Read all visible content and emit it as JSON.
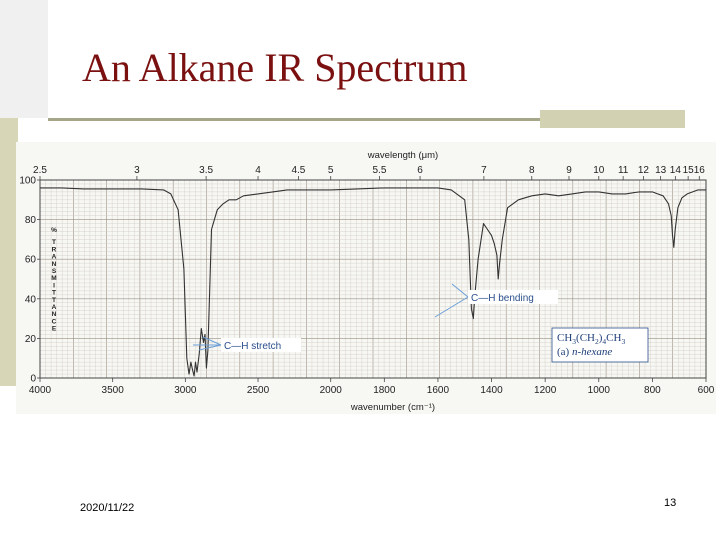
{
  "slide": {
    "title": "An Alkane IR Spectrum",
    "date": "2020/11/22",
    "page_number": "13"
  },
  "chart_data": {
    "type": "line",
    "xlabel": "wavenumber (cm⁻¹)",
    "x2label": "wavelength (μm)",
    "ylabel": "% TRANSMITTANCE",
    "xlim": [
      4000,
      600
    ],
    "ylim": [
      0,
      100
    ],
    "x_ticks": [
      {
        "label": "4000"
      },
      {
        "label": "3500"
      },
      {
        "label": "3000"
      },
      {
        "label": "2500"
      },
      {
        "label": "2000"
      },
      {
        "label": "1800"
      },
      {
        "label": "1600"
      },
      {
        "label": "1400"
      },
      {
        "label": "1200"
      },
      {
        "label": "1000"
      },
      {
        "label": "800"
      },
      {
        "label": "600"
      }
    ],
    "y_ticks": [
      {
        "label": "100",
        "value": 100
      },
      {
        "label": "80",
        "value": 80
      },
      {
        "label": "60",
        "value": 60
      },
      {
        "label": "40",
        "value": 40
      },
      {
        "label": "20",
        "value": 20
      },
      {
        "label": "0",
        "value": 0
      }
    ],
    "wavelength_ticks": [
      {
        "label": "2.5"
      },
      {
        "label": "3"
      },
      {
        "label": "3.5"
      },
      {
        "label": "4"
      },
      {
        "label": "4.5"
      },
      {
        "label": "5"
      },
      {
        "label": "5.5"
      },
      {
        "label": "6"
      },
      {
        "label": "7"
      },
      {
        "label": "8"
      },
      {
        "label": "9"
      },
      {
        "label": "10"
      },
      {
        "label": "11"
      },
      {
        "label": "12"
      },
      {
        "label": "13"
      },
      {
        "label": "14"
      },
      {
        "label": "15"
      },
      {
        "label": "16"
      }
    ],
    "series": [
      {
        "color": "#333333",
        "x": [
          4000,
          3850,
          3700,
          3500,
          3300,
          3150,
          3100,
          3050,
          3010,
          2990,
          2975,
          2962,
          2950,
          2940,
          2930,
          2920,
          2905,
          2890,
          2875,
          2865,
          2855,
          2845,
          2820,
          2780,
          2740,
          2700,
          2650,
          2600,
          2500,
          2400,
          2300,
          2200,
          2100,
          2000,
          1900,
          1800,
          1700,
          1600,
          1550,
          1500,
          1485,
          1475,
          1468,
          1462,
          1450,
          1430,
          1415,
          1400,
          1390,
          1380,
          1375,
          1370,
          1360,
          1340,
          1300,
          1250,
          1200,
          1150,
          1100,
          1050,
          1000,
          950,
          900,
          850,
          800,
          780,
          760,
          740,
          730,
          725,
          720,
          715,
          705,
          690,
          670,
          650,
          630,
          600
        ],
        "y": [
          96,
          96,
          95.5,
          95.5,
          95.5,
          95,
          93,
          85,
          55,
          10,
          2,
          8,
          4,
          1,
          8,
          3,
          12,
          25,
          18,
          22,
          5,
          14,
          75,
          85,
          88,
          90,
          90,
          92,
          93,
          94,
          95,
          95,
          95,
          95,
          95.5,
          96,
          96,
          96,
          95,
          90,
          70,
          35,
          30,
          42,
          60,
          78,
          75,
          72,
          68,
          62,
          50,
          58,
          70,
          86,
          90,
          92,
          93,
          92,
          93,
          94,
          94,
          93,
          93,
          94,
          94,
          93,
          92,
          88,
          82,
          72,
          66,
          75,
          86,
          91,
          93,
          94,
          95,
          95
        ]
      }
    ],
    "annotations": [
      {
        "text": "C—H stretch"
      },
      {
        "text": "C—H bending"
      },
      {
        "formula": {
          "a": "CH",
          "b": "3",
          "c": "(CH",
          "d": "2",
          "e": ")",
          "f": "4",
          "g": "CH",
          "h": "3"
        },
        "compound_prefix": "(a) ",
        "compound_name": "n-hexane"
      }
    ]
  }
}
